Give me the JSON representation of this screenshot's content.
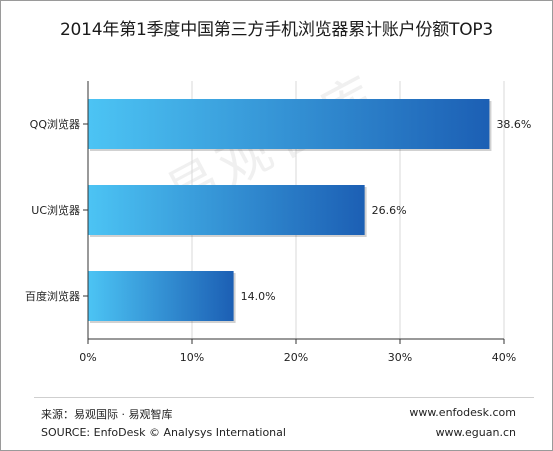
{
  "title": "2014年第1季度中国第三方手机浏览器累计账户份额TOP3",
  "watermark": "易观智库",
  "footer": {
    "source_cn": "来源：易观国际 · 易观智库",
    "source_en": "SOURCE: EnfoDesk © Analysys International",
    "site1": "www.enfodesk.com",
    "site2": "www.eguan.cn"
  },
  "colors": {
    "bar_light": "#4cc4f4",
    "bar_dark": "#1c5fb4",
    "grid": "#d9d9d9",
    "axis": "#333333"
  },
  "chart_data": {
    "type": "bar",
    "orientation": "horizontal",
    "categories": [
      "QQ浏览器",
      "UC浏览器",
      "百度浏览器"
    ],
    "values": [
      38.6,
      26.6,
      14.0
    ],
    "value_labels": [
      "38.6%",
      "26.6%",
      "14.0%"
    ],
    "xlim": [
      0,
      40
    ],
    "x_ticks": [
      "0%",
      "10%",
      "20%",
      "30%",
      "40%"
    ],
    "grid": true,
    "legend": false
  }
}
